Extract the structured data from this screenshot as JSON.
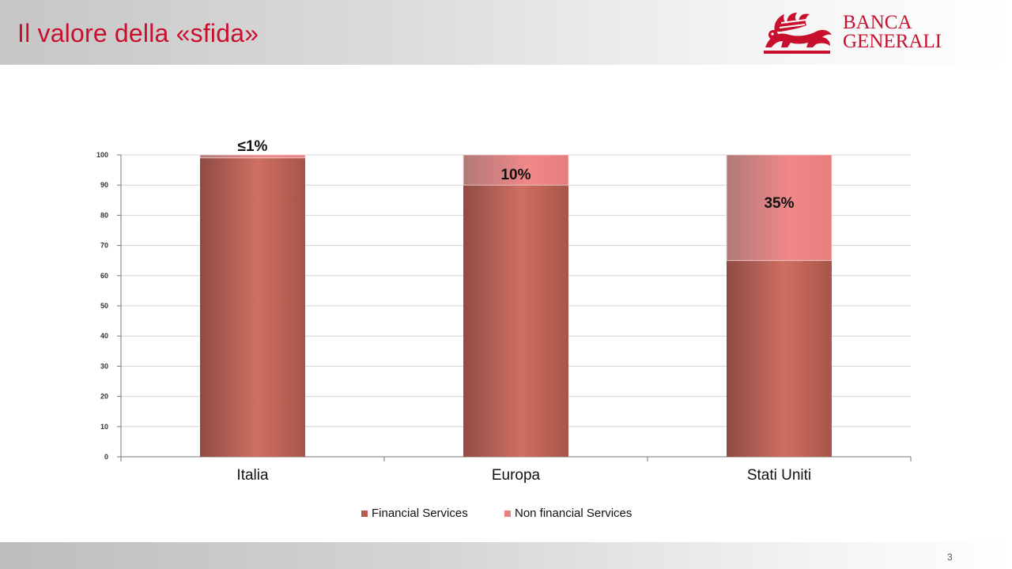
{
  "slide": {
    "title": "Il valore della «sfida»",
    "page_number": "3"
  },
  "logo": {
    "line1": "BANCA",
    "line2": "GENERALI",
    "color": "#c8102e"
  },
  "chart_data": {
    "type": "bar",
    "stacked": true,
    "categories": [
      "Italia",
      "Europa",
      "Stati Uniti"
    ],
    "series": [
      {
        "name": "Financial Services",
        "values": [
          99,
          90,
          65
        ],
        "color": "#b5584d"
      },
      {
        "name": "Non financial Services",
        "values": [
          1,
          10,
          35
        ],
        "color": "#e98282"
      }
    ],
    "data_labels": [
      "≤1%",
      "10%",
      "35%"
    ],
    "ylim": [
      0,
      100
    ],
    "yticks": [
      0,
      10,
      20,
      30,
      40,
      50,
      60,
      70,
      80,
      90,
      100
    ],
    "grid": true,
    "legend": "bottom-center",
    "xlabel": "",
    "ylabel": ""
  }
}
